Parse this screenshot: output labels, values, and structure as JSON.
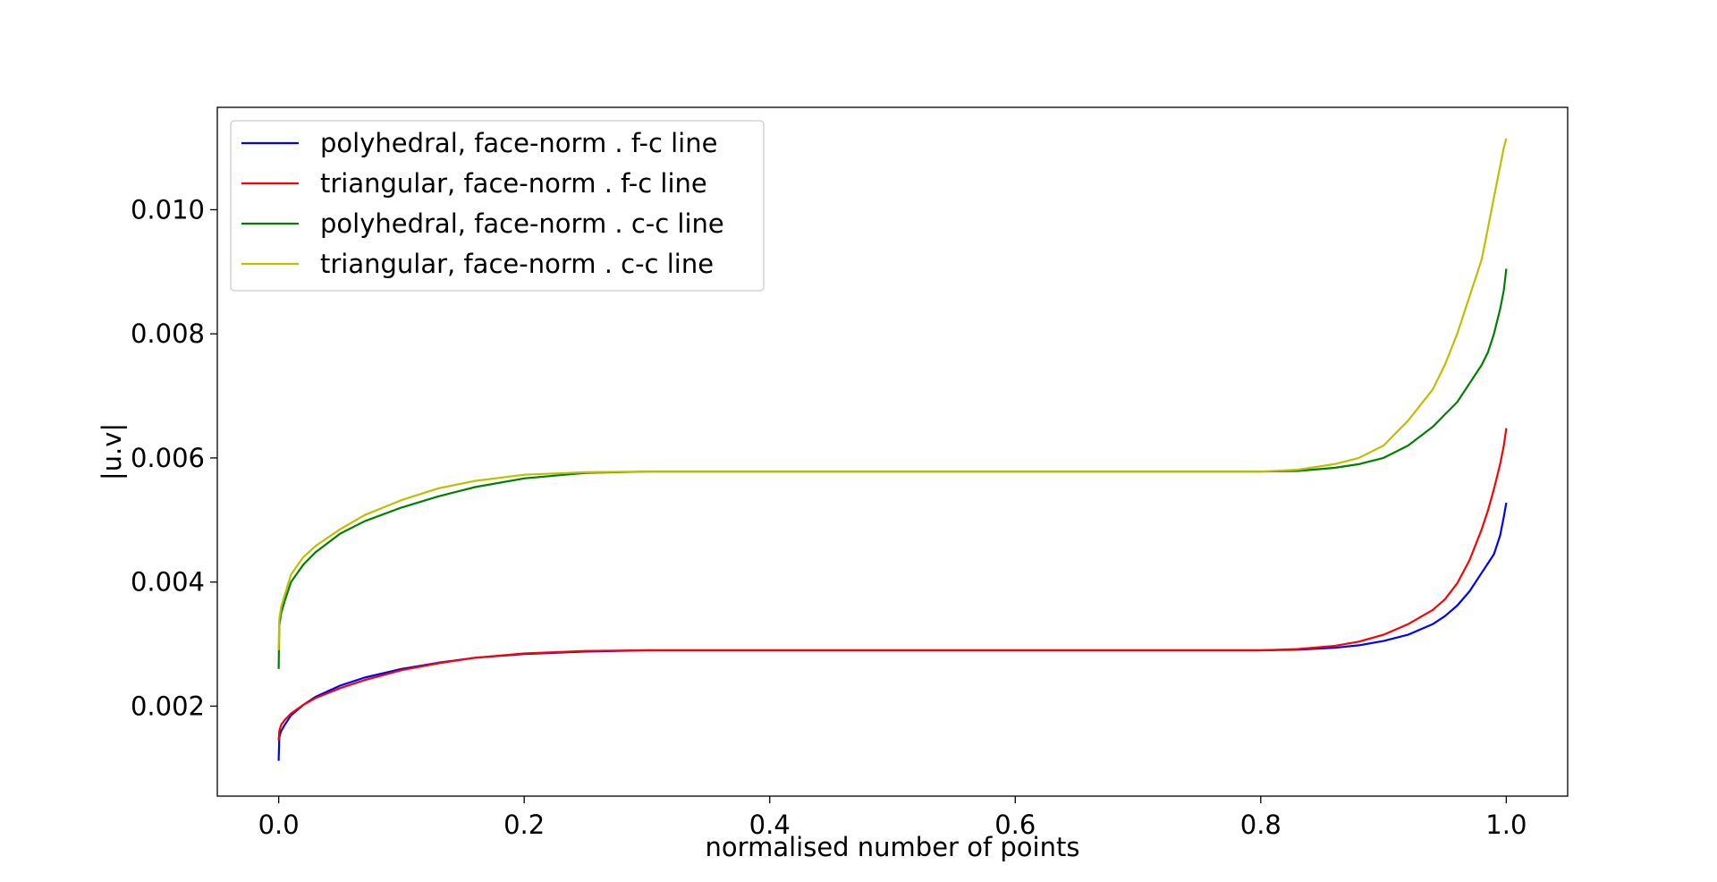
{
  "chart_data": {
    "type": "line",
    "title": "",
    "xlabel": "normalised number of points",
    "ylabel": "|u.v|",
    "xlim": [
      -0.05,
      1.05
    ],
    "ylim": [
      0.00055,
      0.01165
    ],
    "xticks": [
      0.0,
      0.2,
      0.4,
      0.6,
      0.8,
      1.0
    ],
    "xtick_labels": [
      "0.0",
      "0.2",
      "0.4",
      "0.6",
      "0.8",
      "1.0"
    ],
    "yticks": [
      0.002,
      0.004,
      0.006,
      0.008,
      0.01
    ],
    "ytick_labels": [
      "0.002",
      "0.004",
      "0.006",
      "0.008",
      "0.010"
    ],
    "grid": false,
    "legend_position": "top-left",
    "series": [
      {
        "name": "polyhedral, face-norm . f-c line",
        "color": "#0000ff",
        "x": [
          0.0,
          0.0005,
          0.002,
          0.005,
          0.01,
          0.02,
          0.03,
          0.05,
          0.07,
          0.1,
          0.13,
          0.16,
          0.2,
          0.25,
          0.3,
          0.4,
          0.5,
          0.6,
          0.7,
          0.8,
          0.83,
          0.86,
          0.88,
          0.9,
          0.92,
          0.94,
          0.95,
          0.96,
          0.97,
          0.98,
          0.985,
          0.99,
          0.995,
          0.998,
          1.0
        ],
        "y": [
          0.00112,
          0.0015,
          0.0016,
          0.0017,
          0.00185,
          0.00202,
          0.00215,
          0.00233,
          0.00246,
          0.0026,
          0.0027,
          0.00278,
          0.00284,
          0.00288,
          0.0029,
          0.0029,
          0.0029,
          0.0029,
          0.0029,
          0.0029,
          0.00291,
          0.00294,
          0.00298,
          0.00305,
          0.00315,
          0.00332,
          0.00345,
          0.00362,
          0.00385,
          0.00415,
          0.0043,
          0.00445,
          0.00475,
          0.00505,
          0.00528
        ]
      },
      {
        "name": "triangular, face-norm . f-c line",
        "color": "#ff0000",
        "x": [
          0.0,
          0.0005,
          0.002,
          0.005,
          0.01,
          0.02,
          0.03,
          0.05,
          0.07,
          0.1,
          0.13,
          0.16,
          0.2,
          0.25,
          0.3,
          0.4,
          0.5,
          0.6,
          0.7,
          0.8,
          0.83,
          0.86,
          0.88,
          0.9,
          0.92,
          0.94,
          0.95,
          0.96,
          0.97,
          0.98,
          0.985,
          0.99,
          0.995,
          0.998,
          1.0
        ],
        "y": [
          0.00145,
          0.0016,
          0.0017,
          0.00178,
          0.00188,
          0.00202,
          0.00213,
          0.00229,
          0.00242,
          0.00258,
          0.00269,
          0.00278,
          0.00285,
          0.00289,
          0.0029,
          0.0029,
          0.0029,
          0.0029,
          0.0029,
          0.0029,
          0.00292,
          0.00297,
          0.00304,
          0.00315,
          0.00332,
          0.00355,
          0.00372,
          0.00398,
          0.00435,
          0.00485,
          0.00515,
          0.0055,
          0.0059,
          0.0062,
          0.00648
        ]
      },
      {
        "name": "polyhedral, face-norm . c-c line",
        "color": "#008000",
        "x": [
          0.0,
          0.0005,
          0.002,
          0.005,
          0.01,
          0.02,
          0.03,
          0.05,
          0.07,
          0.1,
          0.13,
          0.16,
          0.2,
          0.25,
          0.3,
          0.4,
          0.5,
          0.6,
          0.7,
          0.8,
          0.83,
          0.86,
          0.88,
          0.9,
          0.92,
          0.94,
          0.95,
          0.96,
          0.97,
          0.98,
          0.985,
          0.99,
          0.995,
          0.998,
          1.0
        ],
        "y": [
          0.0026,
          0.0033,
          0.0035,
          0.0037,
          0.004,
          0.00428,
          0.00448,
          0.00478,
          0.00498,
          0.0052,
          0.00538,
          0.00553,
          0.00567,
          0.00576,
          0.00578,
          0.00578,
          0.00578,
          0.00578,
          0.00578,
          0.00578,
          0.00579,
          0.00584,
          0.0059,
          0.006,
          0.0062,
          0.0065,
          0.0067,
          0.0069,
          0.0072,
          0.0075,
          0.0077,
          0.008,
          0.0084,
          0.0087,
          0.00905
        ]
      },
      {
        "name": "triangular, face-norm . c-c line",
        "color": "#bfbf00",
        "x": [
          0.0,
          0.0005,
          0.002,
          0.005,
          0.01,
          0.02,
          0.03,
          0.05,
          0.07,
          0.1,
          0.13,
          0.16,
          0.2,
          0.25,
          0.3,
          0.4,
          0.5,
          0.6,
          0.7,
          0.8,
          0.83,
          0.86,
          0.88,
          0.9,
          0.92,
          0.94,
          0.95,
          0.96,
          0.97,
          0.98,
          0.985,
          0.99,
          0.995,
          0.998,
          1.0
        ],
        "y": [
          0.0029,
          0.0034,
          0.0036,
          0.0038,
          0.00412,
          0.0044,
          0.00458,
          0.00485,
          0.00508,
          0.00532,
          0.00551,
          0.00563,
          0.00573,
          0.00577,
          0.00578,
          0.00578,
          0.00578,
          0.00578,
          0.00578,
          0.00578,
          0.00581,
          0.0059,
          0.006,
          0.0062,
          0.0066,
          0.0071,
          0.0075,
          0.008,
          0.0086,
          0.0092,
          0.0097,
          0.0102,
          0.0107,
          0.011,
          0.01115
        ]
      }
    ]
  }
}
